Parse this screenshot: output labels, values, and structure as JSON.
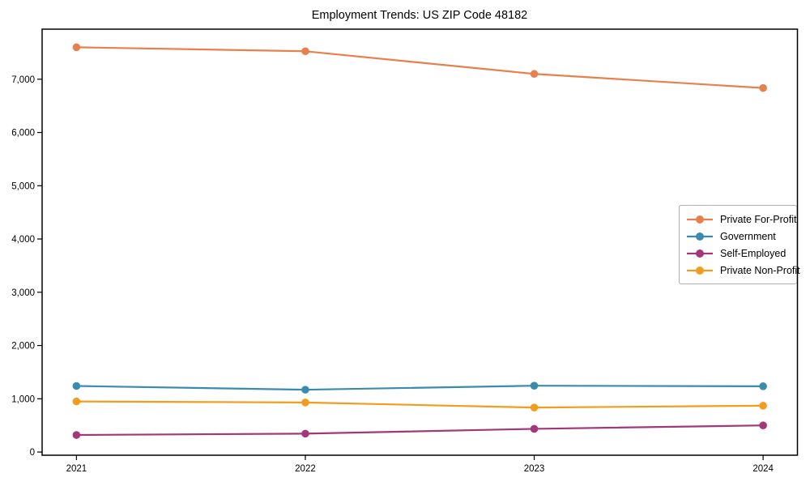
{
  "chart_data": {
    "type": "line",
    "title": "Employment Trends: US ZIP Code 48182",
    "xlabel": "",
    "ylabel": "",
    "x": [
      2021,
      2022,
      2023,
      2024
    ],
    "x_tick_labels": [
      "2021",
      "2022",
      "2023",
      "2024"
    ],
    "y_tick_values": [
      0,
      1000,
      2000,
      3000,
      4000,
      5000,
      6000,
      7000
    ],
    "y_tick_labels": [
      "0",
      "1,000",
      "2,000",
      "3,000",
      "4,000",
      "5,000",
      "6,000",
      "7,000"
    ],
    "xlim": [
      2020.85,
      2024.15
    ],
    "ylim": [
      -60,
      7940
    ],
    "grid": false,
    "legend_position": "right",
    "axis_color": "#000000",
    "background_color": "#ffffff",
    "series": [
      {
        "name": "Private For-Profit",
        "color": "#e8804d",
        "values": [
          7600,
          7525,
          7100,
          6835
        ]
      },
      {
        "name": "Government",
        "color": "#3a8bad",
        "values": [
          1240,
          1170,
          1245,
          1235
        ]
      },
      {
        "name": "Self-Employed",
        "color": "#a23879",
        "values": [
          320,
          345,
          435,
          500
        ]
      },
      {
        "name": "Private Non-Profit",
        "color": "#f39c1d",
        "values": [
          950,
          930,
          835,
          870
        ]
      }
    ]
  }
}
